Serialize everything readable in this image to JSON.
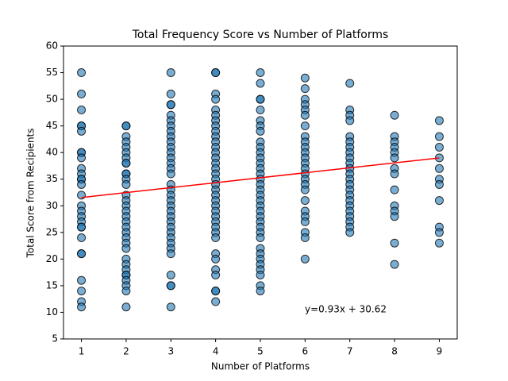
{
  "chart_data": {
    "type": "scatter",
    "title": "Total Frequency Score vs Number of Platforms",
    "x_label": "Number of Platforms",
    "y_label": "Total Score from Recipients",
    "annotation": "y=0.93x + 30.62",
    "color": "#1f77b4",
    "edge_color": "#000000",
    "xlim": [
      0.6,
      9.4
    ],
    "ylim": [
      5,
      60
    ],
    "xticks": [
      1,
      2,
      3,
      4,
      5,
      6,
      7,
      8,
      9
    ],
    "yticks": [
      5,
      10,
      15,
      20,
      25,
      30,
      35,
      40,
      45,
      50,
      55,
      60
    ],
    "groups": [
      {
        "x": 1,
        "values": [
          55,
          51,
          48,
          45,
          45,
          44,
          40,
          40,
          39,
          37,
          36,
          35,
          35,
          34,
          32,
          30,
          29,
          28,
          27,
          26,
          26,
          24,
          21,
          21,
          16,
          14,
          12,
          11
        ]
      },
      {
        "x": 2,
        "values": [
          45,
          45,
          43,
          42,
          41,
          40,
          39,
          38,
          38,
          36,
          36,
          35,
          34,
          32,
          31,
          30,
          29,
          28,
          27,
          26,
          25,
          24,
          23,
          22,
          20,
          19,
          18,
          17,
          17,
          16,
          15,
          14,
          11
        ]
      },
      {
        "x": 3,
        "values": [
          55,
          51,
          49,
          49,
          47,
          46,
          45,
          44,
          43,
          42,
          41,
          40,
          39,
          38,
          37,
          36,
          34,
          33,
          32,
          31,
          30,
          29,
          28,
          27,
          26,
          25,
          24,
          23,
          22,
          21,
          17,
          15,
          15,
          11
        ]
      },
      {
        "x": 4,
        "values": [
          55,
          55,
          51,
          50,
          48,
          47,
          46,
          45,
          44,
          43,
          42,
          41,
          40,
          39,
          38,
          37,
          36,
          35,
          34,
          33,
          32,
          31,
          30,
          29,
          28,
          27,
          26,
          25,
          24,
          21,
          20,
          18,
          17,
          14,
          14,
          12
        ]
      },
      {
        "x": 5,
        "values": [
          55,
          53,
          50,
          50,
          48,
          46,
          45,
          44,
          42,
          41,
          40,
          39,
          38,
          37,
          36,
          35,
          34,
          33,
          32,
          31,
          30,
          29,
          28,
          27,
          26,
          25,
          24,
          22,
          21,
          20,
          19,
          18,
          17,
          15,
          14
        ]
      },
      {
        "x": 6,
        "values": [
          54,
          52,
          50,
          49,
          48,
          47,
          45,
          43,
          42,
          41,
          40,
          39,
          38,
          37,
          36,
          35,
          34,
          33,
          31,
          29,
          28,
          27,
          25,
          24,
          20
        ]
      },
      {
        "x": 7,
        "values": [
          53,
          48,
          47,
          46,
          43,
          42,
          41,
          40,
          39,
          38,
          37,
          36,
          35,
          34,
          33,
          32,
          31,
          30,
          29,
          28,
          27,
          26,
          25
        ]
      },
      {
        "x": 8,
        "values": [
          47,
          43,
          42,
          41,
          40,
          39,
          37,
          36,
          33,
          30,
          29,
          28,
          23,
          19
        ]
      },
      {
        "x": 9,
        "values": [
          46,
          43,
          41,
          39,
          37,
          35,
          34,
          31,
          26,
          25,
          23
        ]
      }
    ],
    "fit_line": {
      "color": "#ff0000",
      "x": [
        1,
        9
      ],
      "values": [
        31.55,
        38.99
      ]
    }
  }
}
